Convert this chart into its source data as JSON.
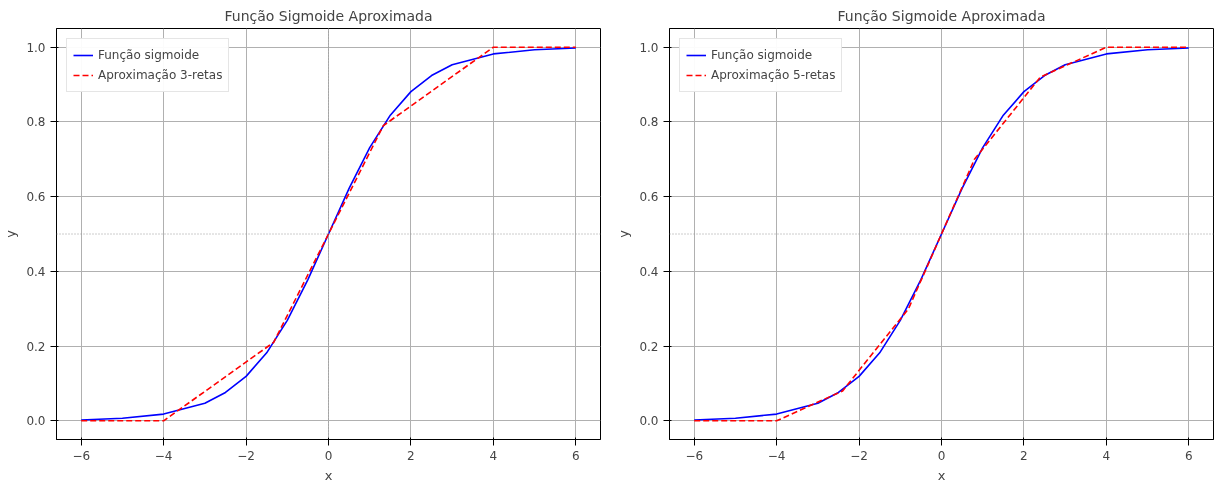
{
  "chart_data": [
    {
      "type": "line",
      "title": "Função Sigmoide Aproximada",
      "xlabel": "x",
      "ylabel": "y",
      "xlim": [
        -6.6,
        6.6
      ],
      "ylim": [
        -0.05,
        1.05
      ],
      "xticks": [
        -6,
        -4,
        -2,
        0,
        2,
        4,
        6
      ],
      "yticks": [
        {
          "value": 0,
          "label": "0.0"
        },
        {
          "value": 0.2,
          "label": "0.2"
        },
        {
          "value": 0.4,
          "label": "0.4"
        },
        {
          "value": 0.6,
          "label": "0.6"
        },
        {
          "value": 0.8,
          "label": "0.8"
        },
        {
          "value": 1,
          "label": "1.0"
        }
      ],
      "grid": true,
      "legend": "top left",
      "series": [
        {
          "name": "Função sigmoide",
          "color": "#0000ff",
          "line_style": "solid",
          "x": [
            -6,
            -5,
            -4,
            -3,
            -2.5,
            -2,
            -1.5,
            -1,
            -0.5,
            0,
            0.5,
            1,
            1.5,
            2,
            2.5,
            3,
            4,
            5,
            6
          ],
          "values": [
            0.002,
            0.007,
            0.018,
            0.047,
            0.076,
            0.119,
            0.182,
            0.269,
            0.378,
            0.5,
            0.622,
            0.731,
            0.818,
            0.881,
            0.924,
            0.953,
            0.982,
            0.993,
            0.998
          ]
        },
        {
          "name": "Aproximação 3-retas",
          "color": "#ff0000",
          "line_style": "dashed",
          "x": [
            -6,
            -4,
            -1.33,
            1.33,
            4,
            6
          ],
          "values": [
            0,
            0,
            0.21,
            0.79,
            1,
            1
          ]
        }
      ],
      "ref_lines": [
        {
          "axis": "y",
          "value": 0.5,
          "color": "#999999",
          "line_style": "dotted"
        },
        {
          "axis": "x",
          "value": 0,
          "color": "#999999",
          "line_style": "dotted"
        }
      ]
    },
    {
      "type": "line",
      "title": "Função Sigmoide Aproximada",
      "xlabel": "x",
      "ylabel": "y",
      "xlim": [
        -6.6,
        6.6
      ],
      "ylim": [
        -0.05,
        1.05
      ],
      "xticks": [
        -6,
        -4,
        -2,
        0,
        2,
        4,
        6
      ],
      "yticks": [
        {
          "value": 0,
          "label": "0.0"
        },
        {
          "value": 0.2,
          "label": "0.2"
        },
        {
          "value": 0.4,
          "label": "0.4"
        },
        {
          "value": 0.6,
          "label": "0.6"
        },
        {
          "value": 0.8,
          "label": "0.8"
        },
        {
          "value": 1,
          "label": "1.0"
        }
      ],
      "grid": true,
      "legend": "top left",
      "series": [
        {
          "name": "Função sigmoide",
          "color": "#0000ff",
          "line_style": "solid",
          "x": [
            -6,
            -5,
            -4,
            -3,
            -2.5,
            -2,
            -1.5,
            -1,
            -0.5,
            0,
            0.5,
            1,
            1.5,
            2,
            2.5,
            3,
            4,
            5,
            6
          ],
          "values": [
            0.002,
            0.007,
            0.018,
            0.047,
            0.076,
            0.119,
            0.182,
            0.269,
            0.378,
            0.5,
            0.622,
            0.731,
            0.818,
            0.881,
            0.924,
            0.953,
            0.982,
            0.993,
            0.998
          ]
        },
        {
          "name": "Aproximação 5-retas",
          "color": "#ff0000",
          "line_style": "dashed",
          "x": [
            -6,
            -4,
            -2.4,
            -0.8,
            0.8,
            2.4,
            4,
            6
          ],
          "values": [
            0,
            0,
            0.08,
            0.3,
            0.7,
            0.92,
            1,
            1
          ]
        }
      ],
      "ref_lines": [
        {
          "axis": "y",
          "value": 0.5,
          "color": "#999999",
          "line_style": "dotted"
        }
      ]
    }
  ]
}
